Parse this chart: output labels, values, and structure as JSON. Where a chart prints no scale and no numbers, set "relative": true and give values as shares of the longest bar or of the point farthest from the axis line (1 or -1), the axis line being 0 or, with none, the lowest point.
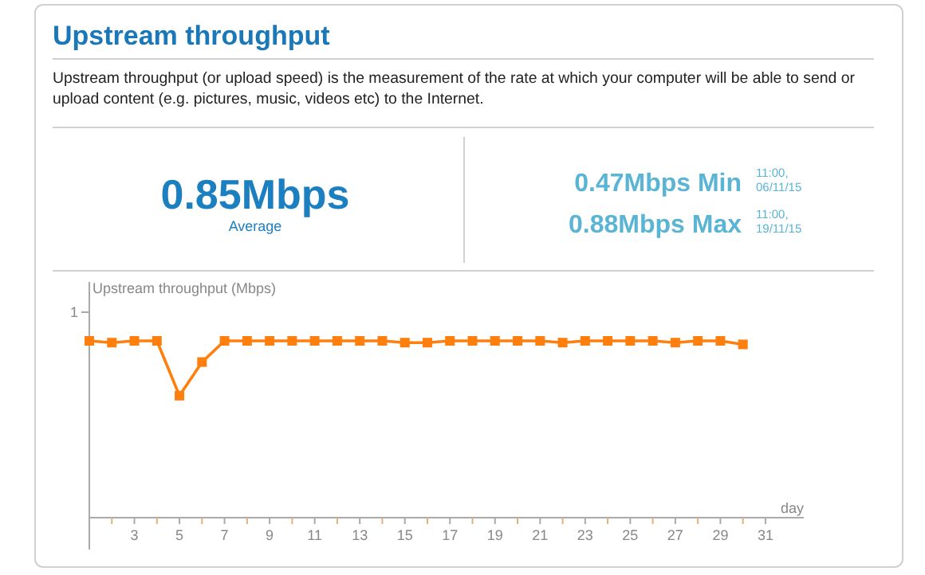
{
  "chart_data": {
    "type": "line",
    "title": "Upstream throughput",
    "xlabel": "day",
    "ylabel": "Upstream throughput (Mbps)",
    "annotations": [
      "Upstream throughput (or upload speed) is the measurement of the rate at which your computer will be able to send or upload content (e.g. pictures, music, videos etc) to the Internet.",
      "0.85Mbps",
      "Average",
      "0.47Mbps Min",
      "11:00, 06/11/15",
      "0.88Mbps Max",
      "11:00, 19/11/15",
      "1"
    ],
    "relative": true,
    "x": [
      1,
      2,
      3,
      4,
      5,
      6,
      7,
      8,
      9,
      10,
      11,
      12,
      13,
      14,
      15,
      16,
      17,
      18,
      19,
      20,
      21,
      22,
      23,
      24,
      25,
      26,
      27,
      28,
      29,
      30
    ],
    "series": [
      {
        "color": "#ff7f0e",
        "values": [
          1,
          0.99,
          1,
          1,
          0.69,
          0.88,
          1,
          1,
          1,
          1,
          1,
          1,
          1,
          1,
          0.99,
          0.99,
          1,
          1,
          1,
          1,
          1,
          0.99,
          1,
          1,
          1,
          1,
          0.99,
          1,
          1,
          0.98
        ]
      }
    ],
    "xlim": [
      1,
      32.7
    ],
    "xticks": [
      {
        "value": 2,
        "label": null
      },
      3,
      {
        "value": 4,
        "label": null
      },
      5,
      {
        "value": 6,
        "label": null
      },
      7,
      {
        "value": 8,
        "label": null
      },
      9,
      {
        "value": 10,
        "label": null
      },
      11,
      {
        "value": 12,
        "label": null
      },
      13,
      {
        "value": 14,
        "label": null
      },
      15,
      {
        "value": 16,
        "label": null
      },
      17,
      {
        "value": 18,
        "label": null
      },
      19,
      {
        "value": 20,
        "label": null
      },
      21,
      {
        "value": 22,
        "label": null
      },
      23,
      {
        "value": 24,
        "label": null
      },
      25,
      {
        "value": 26,
        "label": null
      },
      27,
      {
        "value": 28,
        "label": null
      },
      29,
      {
        "value": 30,
        "label": null
      },
      31
    ],
    "grid": false,
    "marker": "square",
    "line_style": "solid"
  }
}
